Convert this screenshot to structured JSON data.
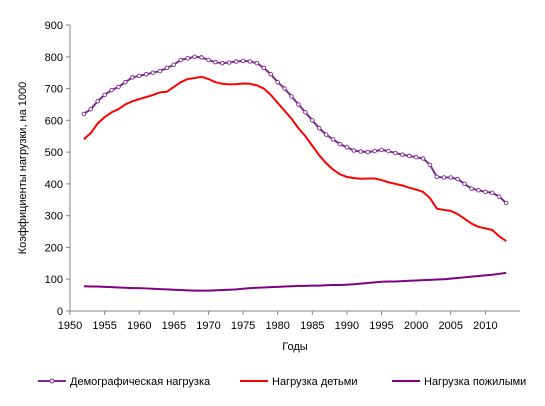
{
  "chart_data": {
    "type": "line",
    "title": "",
    "xlabel": "Годы",
    "ylabel": "Коэффициенты нагрузки, на 1000",
    "xlim": [
      1950,
      2015
    ],
    "ylim": [
      0,
      900
    ],
    "xticks": [
      1950,
      1955,
      1960,
      1965,
      1970,
      1975,
      1980,
      1985,
      1990,
      1995,
      2000,
      2005,
      2010
    ],
    "yticks": [
      0,
      100,
      200,
      300,
      400,
      500,
      600,
      700,
      800,
      900
    ],
    "grid": false,
    "legend_position": "bottom",
    "x": [
      1952,
      1953,
      1954,
      1955,
      1956,
      1957,
      1958,
      1959,
      1960,
      1961,
      1962,
      1963,
      1964,
      1965,
      1966,
      1967,
      1968,
      1969,
      1970,
      1971,
      1972,
      1973,
      1974,
      1975,
      1976,
      1977,
      1978,
      1979,
      1980,
      1981,
      1982,
      1983,
      1984,
      1985,
      1986,
      1987,
      1988,
      1989,
      1990,
      1991,
      1992,
      1993,
      1994,
      1995,
      1996,
      1997,
      1998,
      1999,
      2000,
      2001,
      2002,
      2003,
      2004,
      2005,
      2006,
      2007,
      2008,
      2009,
      2010,
      2011,
      2012,
      2013
    ],
    "series": [
      {
        "name": "Демографическая нагрузка",
        "color": "#7B2C8E",
        "marker": "circle",
        "values": [
          620,
          635,
          660,
          680,
          695,
          705,
          720,
          735,
          740,
          745,
          750,
          755,
          765,
          775,
          790,
          795,
          800,
          798,
          790,
          783,
          780,
          782,
          785,
          787,
          785,
          780,
          765,
          745,
          720,
          700,
          675,
          650,
          625,
          600,
          575,
          555,
          540,
          525,
          515,
          505,
          502,
          500,
          503,
          507,
          503,
          497,
          492,
          488,
          484,
          480,
          460,
          422,
          420,
          420,
          415,
          400,
          385,
          380,
          375,
          372,
          360,
          340
        ]
      },
      {
        "name": "Нагрузка детьми",
        "color": "#FF0000",
        "marker": "none",
        "values": [
          540,
          560,
          590,
          610,
          625,
          635,
          650,
          660,
          667,
          673,
          680,
          688,
          690,
          705,
          720,
          730,
          733,
          737,
          730,
          720,
          715,
          713,
          714,
          716,
          715,
          710,
          700,
          680,
          655,
          630,
          605,
          575,
          550,
          520,
          490,
          465,
          445,
          430,
          422,
          418,
          416,
          417,
          417,
          412,
          405,
          400,
          395,
          388,
          382,
          375,
          355,
          322,
          318,
          315,
          305,
          290,
          275,
          265,
          260,
          255,
          235,
          220
        ]
      },
      {
        "name": "Нагрузка пожилыми",
        "color": "#800080",
        "marker": "none",
        "values": [
          78,
          77,
          77,
          76,
          75,
          74,
          73,
          72,
          72,
          71,
          70,
          69,
          68,
          67,
          66,
          65,
          64,
          64,
          64,
          65,
          66,
          67,
          68,
          70,
          72,
          73,
          74,
          75,
          76,
          77,
          78,
          79,
          79,
          80,
          80,
          81,
          82,
          82,
          83,
          84,
          86,
          88,
          90,
          92,
          93,
          93,
          94,
          95,
          96,
          97,
          98,
          99,
          100,
          102,
          104,
          106,
          108,
          110,
          112,
          114,
          117,
          120
        ]
      }
    ]
  }
}
